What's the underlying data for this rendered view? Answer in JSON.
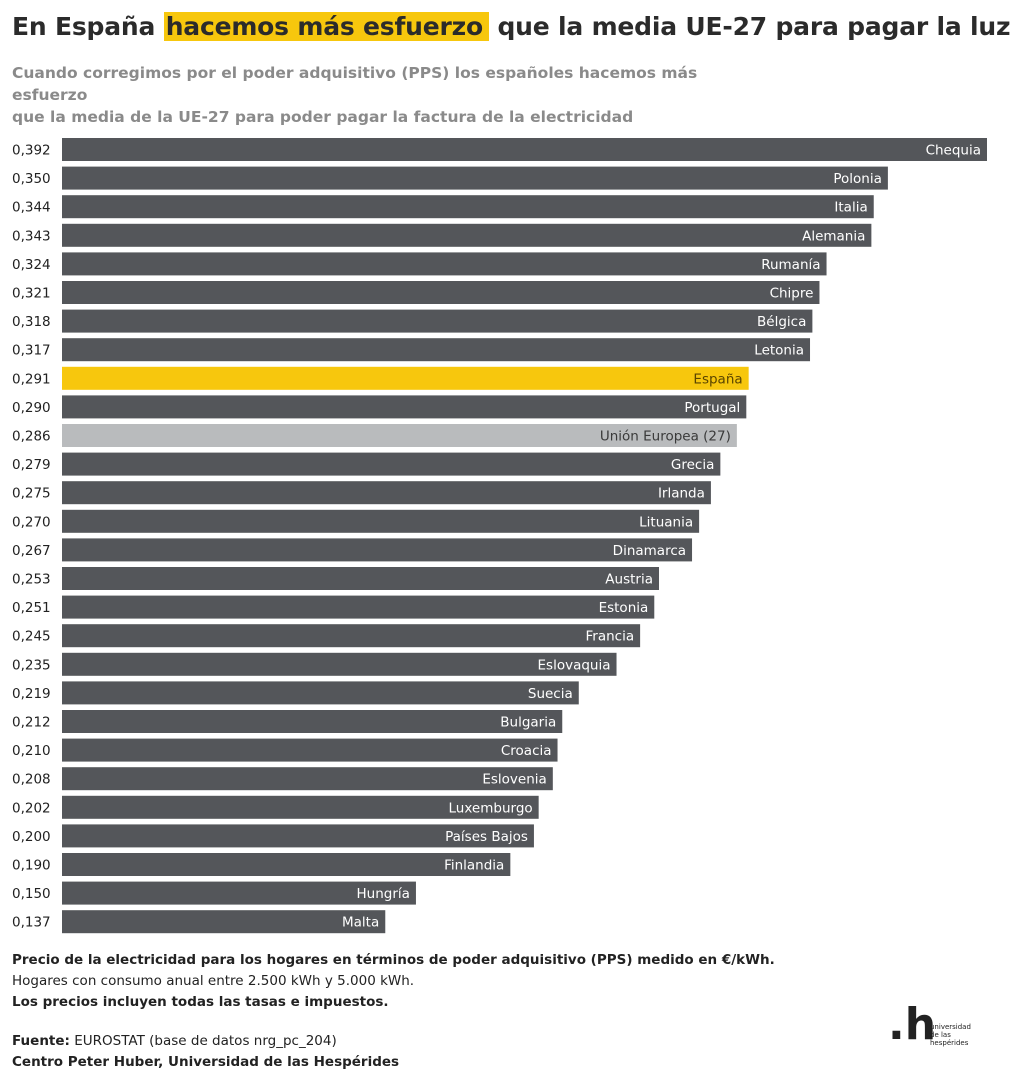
{
  "header": {
    "title_pre": "En España",
    "title_highlight": "hacemos más esfuerzo",
    "title_post": " que la media UE-27 para pagar la luz",
    "subtitle_line1": "Cuando corregimos por el poder adquisitivo (PPS) los españoles hacemos más esfuerzo",
    "subtitle_line2": "que la media de la UE-27 para poder pagar la factura de la electricidad"
  },
  "chart_data": {
    "type": "bar",
    "orientation": "horizontal",
    "categories": [
      "Chequia",
      "Polonia",
      "Italia",
      "Alemania",
      "Rumanía",
      "Chipre",
      "Bélgica",
      "Letonia",
      "España",
      "Portugal",
      "Unión Europea (27)",
      "Grecia",
      "Irlanda",
      "Lituania",
      "Dinamarca",
      "Austria",
      "Estonia",
      "Francia",
      "Eslovaquia",
      "Suecia",
      "Bulgaria",
      "Croacia",
      "Eslovenia",
      "Luxemburgo",
      "Países Bajos",
      "Finlandia",
      "Hungría",
      "Malta"
    ],
    "values": [
      0.392,
      0.35,
      0.344,
      0.343,
      0.324,
      0.321,
      0.318,
      0.317,
      0.291,
      0.29,
      0.286,
      0.279,
      0.275,
      0.27,
      0.267,
      0.253,
      0.251,
      0.245,
      0.235,
      0.219,
      0.212,
      0.21,
      0.208,
      0.202,
      0.2,
      0.19,
      0.15,
      0.137
    ],
    "value_labels": [
      "0,392",
      "0,350",
      "0,344",
      "0,343",
      "0,324",
      "0,321",
      "0,318",
      "0,317",
      "0,291",
      "0,290",
      "0,286",
      "0,279",
      "0,275",
      "0,270",
      "0,267",
      "0,253",
      "0,251",
      "0,245",
      "0,235",
      "0,219",
      "0,212",
      "0,210",
      "0,208",
      "0,202",
      "0,200",
      "0,190",
      "0,150",
      "0,137"
    ],
    "highlight": {
      "España": "#f7c70d",
      "Unión Europea (27)": "#b9bbbd"
    },
    "default_color": "#54565a",
    "xlim": [
      0,
      0.392
    ],
    "unit": "€/kWh (PPS)"
  },
  "notes": {
    "line1": "Precio de la electricidad para los hogares en términos de poder adquisitivo (PPS) medido en €/kWh.",
    "line2": "Hogares con consumo anual entre 2.500 kWh y 5.000 kWh.",
    "line3": "Los precios incluyen todas las tasas e impuestos."
  },
  "source": {
    "label": "Fuente:",
    "text": " EUROSTAT (base de datos nrg_pc_204)",
    "credit": "Centro Peter Huber, Universidad de las Hespérides"
  },
  "logo": {
    "mark": ".h",
    "line1": "universidad",
    "line2": "de las",
    "line3": "hespérides"
  }
}
